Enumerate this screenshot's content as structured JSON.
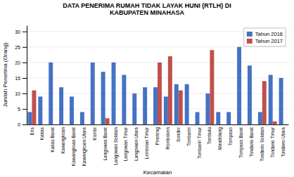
{
  "chart_data": {
    "type": "bar",
    "title": "DATA PENERIMA RUMAH TIDAK LAYAK HUNI (RTLH) DI\nKABUPATEN MINAHASA",
    "xlabel": "Kecamatan",
    "ylabel": "Jumlah Penerima (Orang)",
    "categories": [
      "Eris",
      "Kakas",
      "Kakas Barat",
      "Kawangkoan",
      "Kawangkoan Barat",
      "Kawangkoan Utara",
      "Kombi",
      "Langowan Barat",
      "Langowan Selatan",
      "Langowan Timur",
      "Langowan Utara",
      "Lembean Timur",
      "Pineleng",
      "Romboken",
      "Sonder",
      "Tombariri",
      "Tombariri Timur",
      "Tombulu",
      "Mandolang",
      "Tompaso",
      "Tompaso Barat",
      "Tondano Barat",
      "Tondano Selatan",
      "Tondano Timur",
      "Tondano Utara"
    ],
    "series": [
      {
        "name": "Tahun 2016",
        "color": "#4472C4",
        "values": [
          4,
          9,
          20,
          12,
          9,
          4,
          20,
          17,
          20,
          16,
          10,
          12,
          12,
          9,
          13,
          13,
          4,
          10,
          4,
          4,
          25,
          19,
          4,
          16,
          15
        ]
      },
      {
        "name": "Tahun 2017",
        "color": "#C0504D",
        "values": [
          11,
          0,
          0,
          0,
          0,
          0,
          0,
          2,
          0,
          0,
          0,
          0,
          20,
          22,
          11,
          0,
          0,
          24,
          0,
          0,
          0,
          0,
          14,
          1,
          0
        ]
      }
    ],
    "ylim": [
      0,
      32
    ],
    "yticks": [
      0,
      5,
      10,
      15,
      20,
      25,
      30
    ],
    "grid": true,
    "legend": "upper right"
  }
}
